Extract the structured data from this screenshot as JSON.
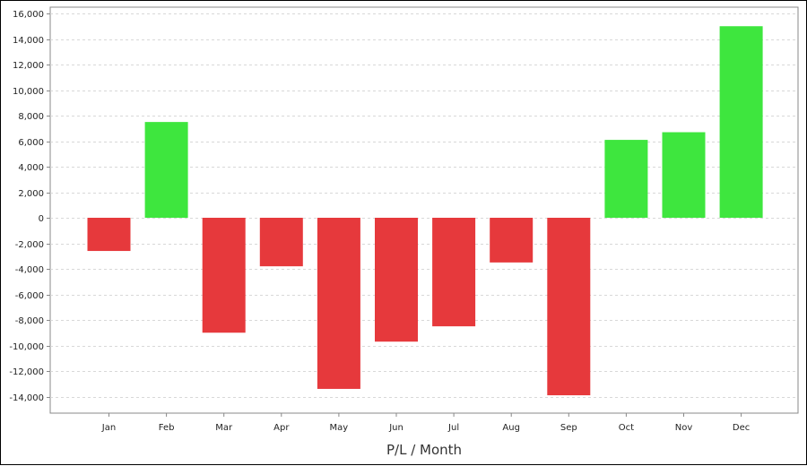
{
  "chart_data": {
    "type": "bar",
    "title": "",
    "xlabel": "P/L / Month",
    "ylabel": "",
    "categories": [
      "Jan",
      "Feb",
      "Mar",
      "Apr",
      "May",
      "Jun",
      "Jul",
      "Aug",
      "Sep",
      "Oct",
      "Nov",
      "Dec"
    ],
    "values": [
      -2600,
      7500,
      -9000,
      -3800,
      -13400,
      -9700,
      -8500,
      -3500,
      -13900,
      6100,
      6700,
      15000
    ],
    "ylim": [
      -15000,
      16000
    ],
    "yticks": [
      16000,
      14000,
      12000,
      10000,
      8000,
      6000,
      4000,
      2000,
      0,
      -2000,
      -4000,
      -6000,
      -8000,
      -10000,
      -12000,
      -14000
    ],
    "ytick_labels": [
      "16,000",
      "14,000",
      "12,000",
      "10,000",
      "8,000",
      "6,000",
      "4,000",
      "2,000",
      "0",
      "-2,000",
      "-4,000",
      "-6,000",
      "-8,000",
      "-10,000",
      "-12,000",
      "-14,000"
    ],
    "grid": true,
    "legend": "none",
    "colors": {
      "positive": "#3ee63e",
      "negative": "#e6393c",
      "grid": "#d8d8d8",
      "axis": "#888888"
    }
  }
}
